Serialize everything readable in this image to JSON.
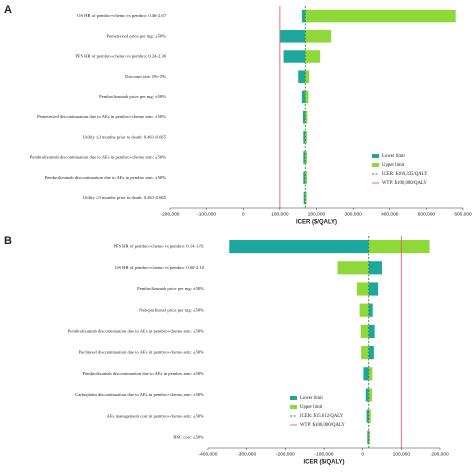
{
  "chart_data": [
    {
      "type": "tornado",
      "panel_label": "A",
      "x_label": "ICER ($/QALY)",
      "categories": [
        "OS HR of pembro+chemo vs pembro: 0.46-2.67",
        "Pemetrexed price per mg: ±50%",
        "PFS HR of pembro+chemo vs pembro: 0.24-2.36",
        "Discount rate: 0%-5%",
        "Pembrolizumab price per mg: ±50%",
        "Pemetrexed discontinuation due to AEs in pembro+chemo arm: ±50%",
        "Utility ≤3 months prior to death: 0.461-0.665",
        "Pembrolizumab discontinuation due to AEs in pembro+chemo arm: ±50%",
        "Pembrolizumab discontinuation due to AEs in pembro arm: ±50%",
        "Utility ≥3 months prior to death: 0.461-0.665"
      ],
      "series": [
        {
          "name": "Lower limit",
          "color": "#1ea79c",
          "values": [
            160000,
            100000,
            110000,
            150000,
            160000,
            163000,
            164000,
            164000,
            164000,
            165000
          ]
        },
        {
          "name": "Upper limit",
          "color": "#8fd83a",
          "values": [
            580000,
            240000,
            210000,
            180000,
            178000,
            175000,
            174000,
            174000,
            174000,
            173000
          ]
        }
      ],
      "icer": {
        "label": "ICER: $169,335/QALY",
        "value": 169335,
        "color": "#3c7d48"
      },
      "wtp": {
        "label": "WTP: $100,000/QALY",
        "value": 100000,
        "color": "#e0606e"
      },
      "xlim": [
        -200000,
        600000
      ],
      "xticks": [
        {
          "value": -200000,
          "label": "-200,000"
        },
        {
          "value": -100000,
          "label": "-100,000"
        },
        0,
        {
          "value": 100000,
          "label": "100,000"
        },
        {
          "value": 200000,
          "label": "200,000"
        },
        {
          "value": 300000,
          "label": "300,000"
        },
        {
          "value": 400000,
          "label": "400,000"
        },
        {
          "value": 500000,
          "label": "500,000"
        },
        {
          "value": 600000,
          "label": "600,000"
        }
      ]
    },
    {
      "type": "tornado",
      "panel_label": "B",
      "x_label": "ICER ($/QALY)",
      "categories": [
        "PFS HR of pembro+chemo vs pembro: 0.14-1.81",
        "OS HR of pembro+chemo vs pembro: 0.60-2.10",
        "Pembrolizumab price per mg: ±50%",
        "Nab-paclitaxel price per mg: ±50%",
        "Pembrolizumab discontinuation due to AEs in pembro+chemo arm: ±50%",
        "Paclitaxel discontinuation due to AEs in pembro+chemo arm: ±50%",
        "Pembrolizumab discontinuation due to AEs in pembro arm: ±50%",
        "Carboplatin discontinuation due to AEs in pembro+chemo arm: ±50%",
        "AEs management cost in pembro+chemo arm: ±50%",
        "BSC cost: ±50%"
      ],
      "series": [
        {
          "name": "Lower limit",
          "color": "#1ea79c",
          "values": [
            -345000,
            50000,
            40000,
            26000,
            31000,
            29000,
            2000,
            8000,
            10000,
            12000
          ]
        },
        {
          "name": "Upper limit",
          "color": "#8fd83a",
          "values": [
            173000,
            -65000,
            -15000,
            -8000,
            -5000,
            -4000,
            25000,
            24000,
            21000,
            19000
          ]
        }
      ],
      "icer": {
        "label": "ICER: $15,612/QALY",
        "value": 15612,
        "color": "#3c7d48"
      },
      "wtp": {
        "label": "WTP: $100,000/QALY",
        "value": 100000,
        "color": "#e0606e"
      },
      "xlim": [
        -400000,
        200000
      ],
      "xticks": [
        {
          "value": -400000,
          "label": "-400,000"
        },
        {
          "value": -300000,
          "label": "-300,000"
        },
        {
          "value": -200000,
          "label": "-200,000"
        },
        {
          "value": -100000,
          "label": "-100,000"
        },
        0,
        {
          "value": 100000,
          "label": "100,000"
        },
        {
          "value": 200000,
          "label": "200,000"
        }
      ]
    }
  ]
}
